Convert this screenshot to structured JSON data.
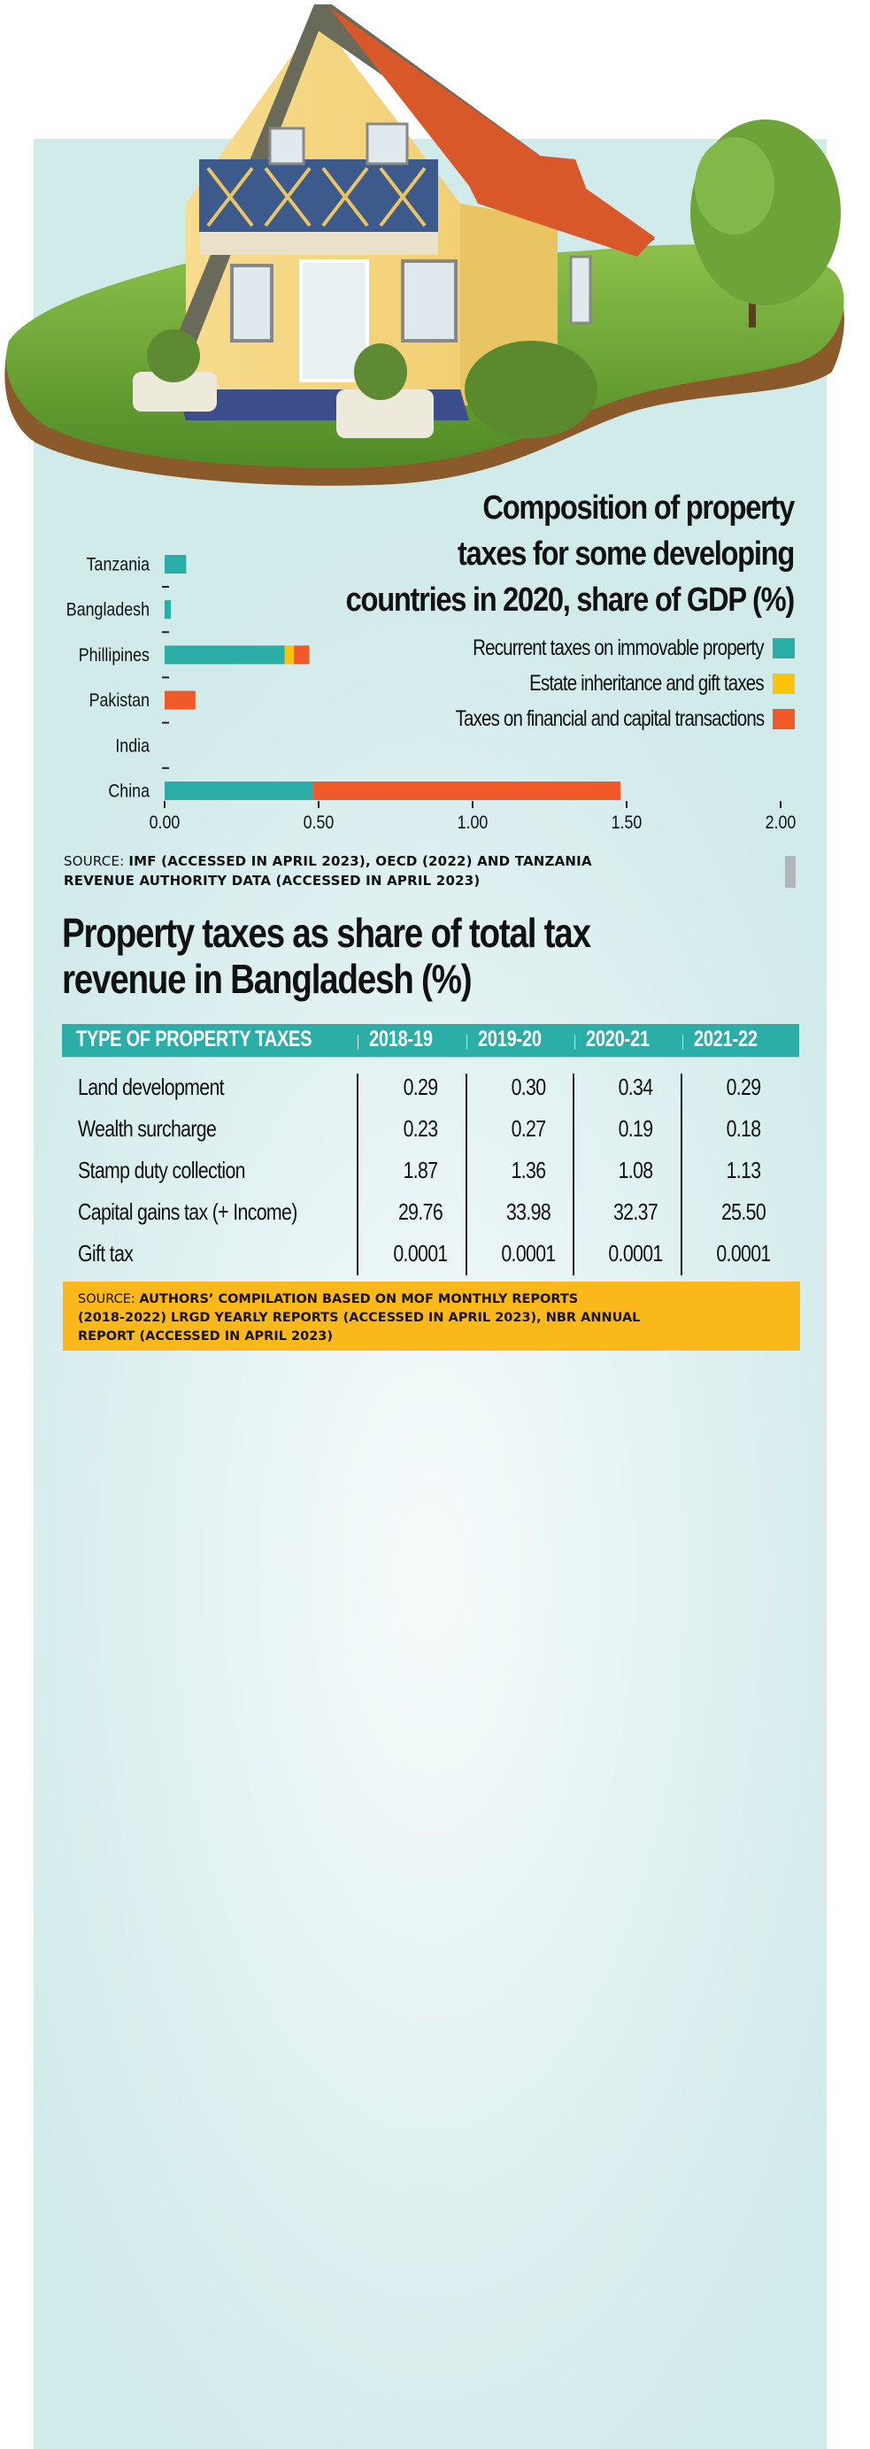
{
  "chart_data": [
    {
      "type": "bar",
      "orientation": "horizontal",
      "stacked": true,
      "title": "Composition of property taxes for some developing countries in 2020, share of GDP (%)",
      "title_lines": [
        "Composition of property",
        "taxes for some developing",
        "countries in 2020, share of GDP (%)"
      ],
      "categories": [
        "Tanzania",
        "Bangladesh",
        "Phillipines",
        "Pakistan",
        "India",
        "China"
      ],
      "series": [
        {
          "name": "Recurrent taxes on immovable property",
          "color": "#2aaea7",
          "values": [
            0.07,
            0.02,
            0.39,
            0,
            0,
            0.48
          ]
        },
        {
          "name": "Estate inheritance and gift taxes",
          "color": "#fcc30d",
          "values": [
            0,
            0,
            0.03,
            0,
            0,
            0
          ]
        },
        {
          "name": "Taxes on financial and capital transactions",
          "color": "#f05a28",
          "values": [
            0,
            0,
            0.05,
            0.1,
            0,
            1.0
          ]
        }
      ],
      "xlim": [
        0,
        2.0
      ],
      "xticks": [
        "0.00",
        "0.50",
        "1.00",
        "1.50",
        "2.00"
      ],
      "xtick_values": [
        0,
        0.5,
        1.0,
        1.5,
        2.0
      ],
      "xlabel": "",
      "ylabel": "",
      "grid": false,
      "legend_position": "right",
      "source_prefix": "SOURCE: ",
      "source": "IMF (ACCESSED IN APRIL 2023), OECD (2022) AND TANZANIA REVENUE AUTHORITY DATA (ACCESSED IN APRIL 2023)",
      "source_lines": [
        "IMF (ACCESSED IN APRIL 2023), OECD (2022) AND TANZANIA",
        "REVENUE AUTHORITY DATA (ACCESSED IN APRIL 2023)"
      ]
    },
    {
      "type": "table",
      "title": "Property taxes as share of total tax revenue in Bangladesh (%)",
      "title_lines": [
        "Property taxes as share of total tax",
        "revenue in Bangladesh (%)"
      ],
      "columns": [
        "TYPE OF PROPERTY TAXES",
        "2018-19",
        "2019-20",
        "2020-21",
        "2021-22"
      ],
      "rows": [
        {
          "label": "Land development",
          "values": [
            "0.29",
            "0.30",
            "0.34",
            "0.29"
          ]
        },
        {
          "label": "Wealth surcharge",
          "values": [
            "0.23",
            "0.27",
            "0.19",
            "0.18"
          ]
        },
        {
          "label": "Stamp duty collection",
          "values": [
            "1.87",
            "1.36",
            "1.08",
            "1.13"
          ]
        },
        {
          "label": "Capital gains tax (+ Income)",
          "values": [
            "29.76",
            "33.98",
            "32.37",
            "25.50"
          ]
        },
        {
          "label": "Gift tax",
          "values": [
            "0.0001",
            "0.0001",
            "0.0001",
            "0.0001"
          ]
        }
      ],
      "header_color": "#2aaea7",
      "source_prefix": "SOURCE: ",
      "source_lines": [
        "AUTHORS’ COMPILATION BASED ON MOF MONTHLY REPORTS",
        "(2018-2022) LRGD YEARLY REPORTS (ACCESSED IN APRIL 2023), NBR ANNUAL",
        "REPORT (ACCESSED IN APRIL 2023)"
      ],
      "source_box_color": "#fbb81a"
    }
  ],
  "illustration": {
    "icon": "house-on-grass-island-illustration"
  }
}
